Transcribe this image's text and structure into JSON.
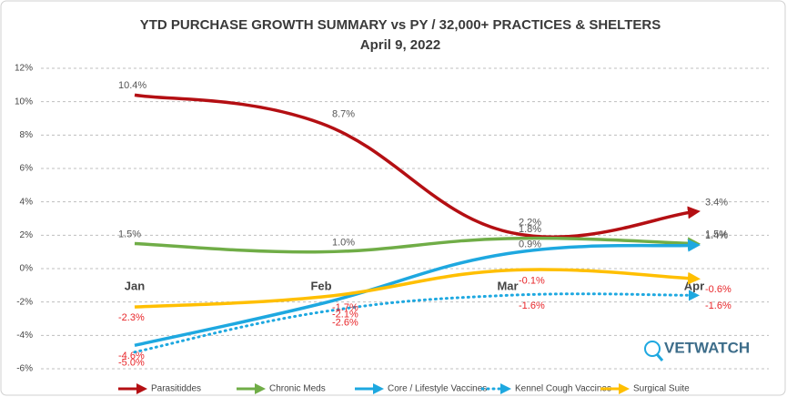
{
  "chart_data": {
    "type": "line",
    "title": "YTD PURCHASE GROWTH SUMMARY vs PY / 32,000+  PRACTICES & SHELTERS",
    "subtitle": "April 9, 2022",
    "logo": "VETWATCH",
    "categories": [
      "Jan",
      "Feb",
      "Mar",
      "Apr"
    ],
    "ylim": [
      -6,
      12
    ],
    "yticks": [
      {
        "value": -6,
        "label": "-6%"
      },
      {
        "value": -4,
        "label": "-4%"
      },
      {
        "value": -2,
        "label": "-2%"
      },
      {
        "value": 0,
        "label": "0%"
      },
      {
        "value": 2,
        "label": "2%"
      },
      {
        "value": 4,
        "label": "4%"
      },
      {
        "value": 6,
        "label": "6%"
      },
      {
        "value": 8,
        "label": "8%"
      },
      {
        "value": 10,
        "label": "10%"
      },
      {
        "value": 12,
        "label": "12%"
      }
    ],
    "grid": true,
    "series": [
      {
        "name": "Parasitiddes",
        "color": "#b40f13",
        "style": "solid",
        "values": [
          10.4,
          8.7,
          2.2,
          3.4
        ],
        "value_labels": [
          "10.4%",
          "8.7%",
          "2.2%",
          "3.4%"
        ]
      },
      {
        "name": "Chronic Meds",
        "color": "#70ad47",
        "style": "solid",
        "values": [
          1.5,
          1.0,
          1.8,
          1.5
        ],
        "value_labels": [
          "1.5%",
          "1.0%",
          "1.8%",
          "1.5%"
        ]
      },
      {
        "name": "Core / Lifestyle Vaccines",
        "color": "#1ea8e0",
        "style": "solid",
        "values": [
          -4.6,
          -2.1,
          0.9,
          1.4
        ],
        "value_labels": [
          "-4.6%",
          "-2.1%",
          "0.9%",
          "1.4%"
        ]
      },
      {
        "name": "Kennel Cough Vaccines",
        "color": "#1ea8e0",
        "style": "dotted",
        "values": [
          -5.0,
          -2.6,
          -1.6,
          -1.6
        ],
        "value_labels": [
          "-5.0%",
          "-2.6%",
          "-1.6%",
          "-1.6%"
        ]
      },
      {
        "name": "Surgical Suite",
        "color": "#ffbf00",
        "style": "solid",
        "values": [
          -2.3,
          -1.7,
          -0.1,
          -0.6
        ],
        "value_labels": [
          "-2.3%",
          "-1.7%",
          "-0.1%",
          "-0.6%"
        ]
      }
    ]
  }
}
